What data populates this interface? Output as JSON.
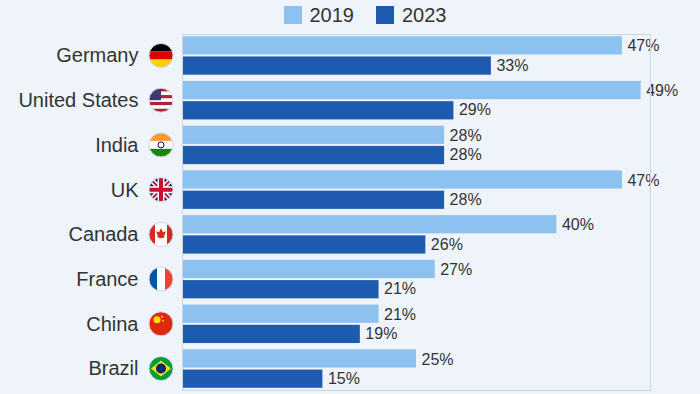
{
  "chart_data": {
    "type": "bar",
    "orientation": "horizontal",
    "categories": [
      "Germany",
      "United States",
      "India",
      "UK",
      "Canada",
      "France",
      "China",
      "Brazil"
    ],
    "series": [
      {
        "name": "2019",
        "color": "#8cc1f0",
        "values": [
          47,
          49,
          28,
          47,
          40,
          27,
          21,
          25
        ],
        "value_labels": [
          "47%",
          "49%",
          "28%",
          "47%",
          "40%",
          "27%",
          "21%",
          "25%"
        ]
      },
      {
        "name": "2023",
        "color": "#1e5bb0",
        "values": [
          33,
          29,
          28,
          28,
          26,
          21,
          19,
          15
        ],
        "value_labels": [
          "33%",
          "29%",
          "28%",
          "28%",
          "26%",
          "21%",
          "19%",
          "15%"
        ]
      }
    ],
    "xlim": [
      0,
      50
    ],
    "xticks": [],
    "tick_labels": "y",
    "data_labels": true,
    "legend": "top",
    "grid": false
  }
}
